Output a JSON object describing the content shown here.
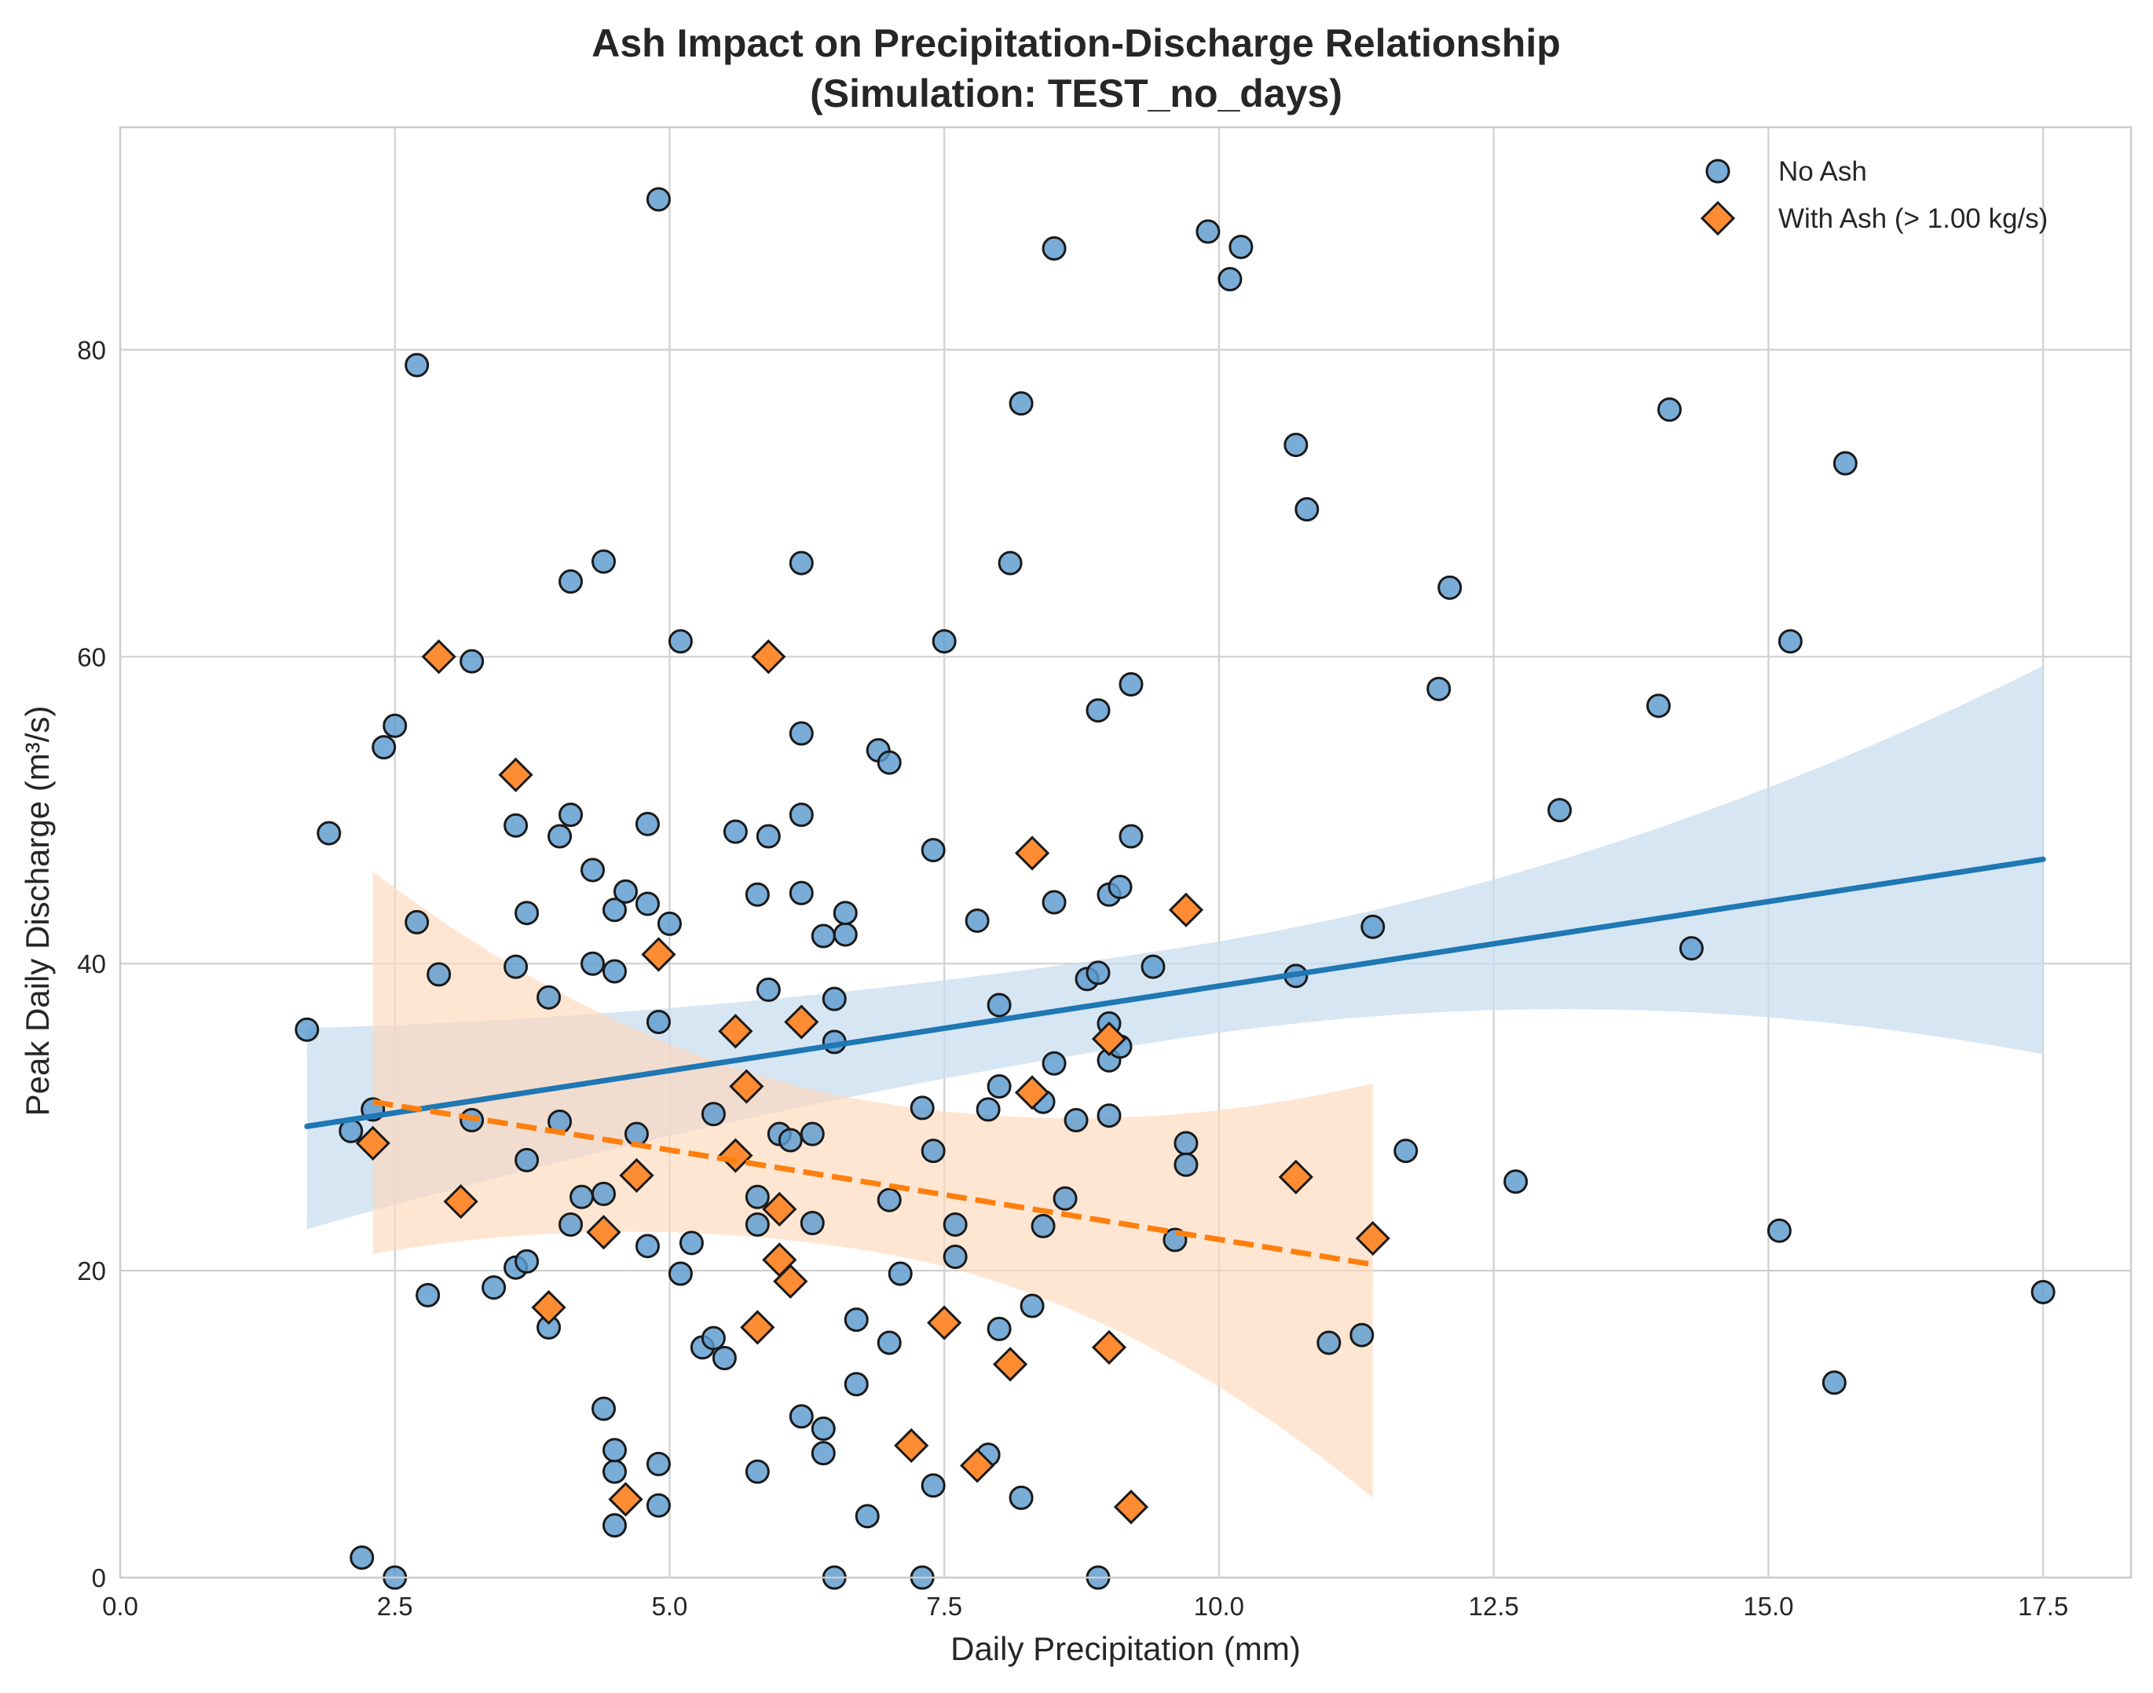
{
  "chart_data": {
    "type": "scatter",
    "title": "Ash Impact on Precipitation-Discharge Relationship",
    "subtitle": "(Simulation: TEST_no_days)",
    "xlabel": "Daily Precipitation (mm)",
    "ylabel": "Peak Daily Discharge (m³/s)",
    "xlim": [
      0,
      18.3
    ],
    "ylim": [
      0,
      94.5
    ],
    "xticks": [
      0,
      2.5,
      5,
      7.5,
      10,
      12.5,
      15,
      17.5
    ],
    "xtick_labels": [
      "0.0",
      "2.5",
      "5.0",
      "7.5",
      "10.0",
      "12.5",
      "15.0",
      "17.5"
    ],
    "yticks": [
      0,
      20,
      40,
      60,
      80
    ],
    "ytick_labels": [
      "0",
      "20",
      "40",
      "60",
      "80"
    ],
    "grid": true,
    "legend_position": "top-right",
    "series": [
      {
        "name": "No Ash",
        "marker": "circle",
        "color": "#5b9bd0",
        "edge_color": "#1a1a1a",
        "points": [
          [
            1.7,
            35.7
          ],
          [
            1.9,
            48.5
          ],
          [
            2.1,
            29.1
          ],
          [
            2.2,
            1.3
          ],
          [
            2.3,
            30.5
          ],
          [
            2.4,
            54.1
          ],
          [
            2.5,
            55.5
          ],
          [
            2.5,
            0.0
          ],
          [
            2.7,
            42.7
          ],
          [
            2.7,
            79.0
          ],
          [
            2.8,
            18.4
          ],
          [
            2.9,
            39.3
          ],
          [
            3.2,
            59.7
          ],
          [
            3.2,
            29.8
          ],
          [
            3.4,
            18.9
          ],
          [
            3.6,
            49.0
          ],
          [
            3.6,
            20.2
          ],
          [
            3.6,
            39.8
          ],
          [
            3.7,
            20.6
          ],
          [
            3.7,
            43.3
          ],
          [
            3.7,
            27.2
          ],
          [
            3.9,
            37.8
          ],
          [
            3.9,
            16.3
          ],
          [
            4.0,
            29.7
          ],
          [
            4.0,
            48.3
          ],
          [
            4.1,
            49.7
          ],
          [
            4.1,
            64.9
          ],
          [
            4.1,
            23.0
          ],
          [
            4.2,
            24.8
          ],
          [
            4.3,
            46.1
          ],
          [
            4.3,
            40.0
          ],
          [
            4.4,
            66.2
          ],
          [
            4.4,
            25.0
          ],
          [
            4.4,
            11.0
          ],
          [
            4.5,
            43.5
          ],
          [
            4.5,
            39.5
          ],
          [
            4.5,
            6.9
          ],
          [
            4.5,
            3.4
          ],
          [
            4.5,
            8.3
          ],
          [
            4.6,
            44.7
          ],
          [
            4.7,
            28.9
          ],
          [
            4.8,
            43.9
          ],
          [
            4.8,
            49.1
          ],
          [
            4.8,
            21.6
          ],
          [
            4.9,
            36.2
          ],
          [
            4.9,
            89.8
          ],
          [
            4.9,
            7.4
          ],
          [
            4.9,
            4.7
          ],
          [
            5.0,
            42.6
          ],
          [
            5.1,
            19.8
          ],
          [
            5.1,
            61.0
          ],
          [
            5.2,
            21.8
          ],
          [
            5.3,
            15.0
          ],
          [
            5.4,
            15.6
          ],
          [
            5.4,
            30.2
          ],
          [
            5.5,
            14.3
          ],
          [
            5.6,
            48.6
          ],
          [
            5.8,
            44.5
          ],
          [
            5.8,
            24.8
          ],
          [
            5.8,
            23.0
          ],
          [
            5.8,
            6.9
          ],
          [
            5.9,
            48.3
          ],
          [
            5.9,
            38.3
          ],
          [
            6.0,
            28.9
          ],
          [
            6.1,
            28.5
          ],
          [
            6.2,
            66.1
          ],
          [
            6.2,
            55.0
          ],
          [
            6.2,
            49.7
          ],
          [
            6.2,
            44.6
          ],
          [
            6.2,
            10.5
          ],
          [
            6.3,
            23.1
          ],
          [
            6.3,
            28.9
          ],
          [
            6.4,
            41.8
          ],
          [
            6.4,
            9.7
          ],
          [
            6.4,
            8.1
          ],
          [
            6.5,
            37.7
          ],
          [
            6.5,
            34.9
          ],
          [
            6.5,
            0.0
          ],
          [
            6.6,
            41.9
          ],
          [
            6.6,
            43.3
          ],
          [
            6.7,
            16.8
          ],
          [
            6.7,
            12.6
          ],
          [
            6.8,
            4.0
          ],
          [
            6.9,
            53.9
          ],
          [
            7.0,
            53.1
          ],
          [
            7.0,
            15.3
          ],
          [
            7.0,
            24.6
          ],
          [
            7.1,
            19.8
          ],
          [
            7.2,
            8.6
          ],
          [
            7.3,
            30.6
          ],
          [
            7.3,
            0.0
          ],
          [
            7.4,
            47.4
          ],
          [
            7.4,
            6.0
          ],
          [
            7.4,
            27.8
          ],
          [
            7.5,
            61.0
          ],
          [
            7.6,
            23.0
          ],
          [
            7.6,
            20.9
          ],
          [
            7.8,
            42.8
          ],
          [
            7.9,
            8.0
          ],
          [
            7.9,
            30.5
          ],
          [
            8.0,
            37.3
          ],
          [
            8.0,
            16.2
          ],
          [
            8.0,
            32.0
          ],
          [
            8.1,
            66.1
          ],
          [
            8.2,
            76.5
          ],
          [
            8.2,
            5.2
          ],
          [
            8.3,
            17.7
          ],
          [
            8.4,
            31.0
          ],
          [
            8.4,
            22.9
          ],
          [
            8.5,
            44.0
          ],
          [
            8.5,
            33.5
          ],
          [
            8.5,
            86.6
          ],
          [
            8.6,
            24.7
          ],
          [
            8.7,
            29.8
          ],
          [
            8.8,
            39.0
          ],
          [
            8.9,
            56.5
          ],
          [
            8.9,
            39.4
          ],
          [
            8.9,
            0.0
          ],
          [
            9.0,
            36.1
          ],
          [
            9.0,
            44.5
          ],
          [
            9.0,
            30.1
          ],
          [
            9.0,
            33.7
          ],
          [
            9.1,
            45.0
          ],
          [
            9.1,
            34.6
          ],
          [
            9.2,
            48.3
          ],
          [
            9.2,
            58.2
          ],
          [
            9.4,
            39.8
          ],
          [
            9.6,
            22.0
          ],
          [
            9.7,
            28.3
          ],
          [
            9.7,
            26.9
          ],
          [
            9.9,
            87.7
          ],
          [
            10.1,
            84.6
          ],
          [
            10.2,
            86.7
          ],
          [
            10.7,
            39.2
          ],
          [
            10.7,
            73.8
          ],
          [
            10.8,
            69.6
          ],
          [
            11.0,
            15.3
          ],
          [
            11.3,
            15.8
          ],
          [
            11.4,
            42.4
          ],
          [
            11.7,
            27.8
          ],
          [
            12.0,
            57.9
          ],
          [
            12.1,
            64.5
          ],
          [
            12.7,
            25.8
          ],
          [
            13.1,
            50.0
          ],
          [
            14.0,
            56.8
          ],
          [
            14.1,
            76.1
          ],
          [
            14.3,
            41.0
          ],
          [
            15.1,
            22.6
          ],
          [
            15.2,
            61.0
          ],
          [
            15.6,
            12.7
          ],
          [
            15.7,
            72.6
          ],
          [
            17.5,
            18.6
          ]
        ]
      },
      {
        "name": "With Ash (> 1.00 kg/s)",
        "marker": "diamond",
        "color": "#ff8c33",
        "edge_color": "#1a1a1a",
        "points": [
          [
            2.3,
            28.3
          ],
          [
            2.9,
            60.0
          ],
          [
            3.1,
            24.5
          ],
          [
            3.6,
            52.3
          ],
          [
            3.9,
            17.6
          ],
          [
            4.4,
            22.5
          ],
          [
            4.6,
            5.1
          ],
          [
            4.7,
            26.2
          ],
          [
            4.9,
            40.6
          ],
          [
            5.6,
            35.6
          ],
          [
            5.6,
            27.5
          ],
          [
            5.7,
            32.0
          ],
          [
            5.8,
            16.3
          ],
          [
            5.9,
            60.0
          ],
          [
            6.0,
            24.0
          ],
          [
            6.0,
            20.7
          ],
          [
            6.1,
            19.3
          ],
          [
            6.2,
            36.2
          ],
          [
            7.2,
            8.6
          ],
          [
            7.5,
            16.6
          ],
          [
            7.8,
            7.3
          ],
          [
            8.1,
            13.9
          ],
          [
            8.3,
            31.6
          ],
          [
            8.3,
            47.2
          ],
          [
            9.0,
            35.1
          ],
          [
            9.0,
            15.0
          ],
          [
            9.2,
            4.6
          ],
          [
            9.7,
            43.5
          ],
          [
            10.7,
            26.1
          ],
          [
            11.4,
            22.1
          ]
        ]
      }
    ],
    "regression": [
      {
        "series": "No Ash",
        "color": "#1f77b4",
        "line_style": "solid",
        "x_range": [
          1.7,
          17.5
        ],
        "line": [
          29.4,
          46.8
        ],
        "ci_lower": [
          22.7,
          34.1
        ],
        "ci_upper": [
          35.8,
          59.4
        ],
        "ci_color": "#c9ddef"
      },
      {
        "series": "With Ash (> 1.00 kg/s)",
        "color": "#ff7f0e",
        "line_style": "dashed",
        "x_range": [
          2.3,
          11.4
        ],
        "line": [
          31.0,
          20.4
        ],
        "ci_lower": [
          21.1,
          5.2
        ],
        "ci_upper": [
          46.0,
          32.2
        ],
        "ci_color": "#ffd9bb"
      }
    ]
  }
}
